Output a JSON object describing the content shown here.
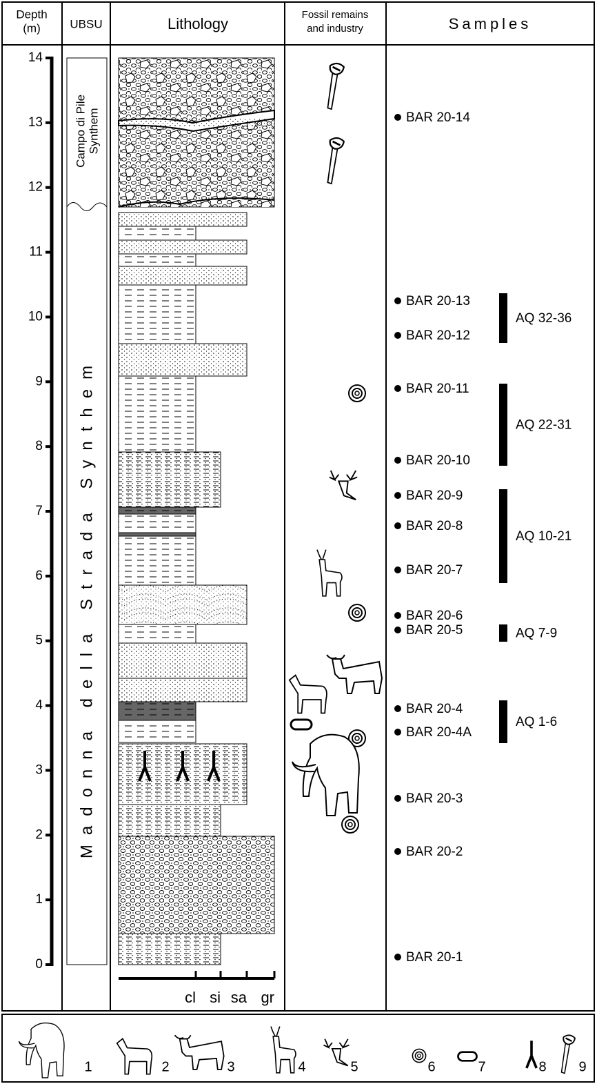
{
  "columns": {
    "depth": [
      "Depth",
      "(m)"
    ],
    "ubsu": "UBSU",
    "lithology": "Lithology",
    "fossils": [
      "Fossil remains",
      "and industry"
    ],
    "samples": "Samples"
  },
  "depth_ticks": [
    0,
    1,
    2,
    3,
    4,
    5,
    6,
    7,
    8,
    9,
    10,
    11,
    12,
    13,
    14
  ],
  "ubsu_units": [
    {
      "name": [
        "Campo di Pile",
        "Synthem"
      ]
    },
    {
      "name": "Madonna della Strada Synthem"
    }
  ],
  "grain_sizes": [
    "cl",
    "si",
    "sa",
    "gr"
  ],
  "samples": [
    "BAR 20-14",
    "BAR 20-13",
    "BAR 20-12",
    "BAR 20-11",
    "BAR 20-10",
    "BAR 20-9",
    "BAR 20-8",
    "BAR 20-7",
    "BAR 20-6",
    "BAR 20-5",
    "BAR 20-4",
    "BAR 20-4A",
    "BAR 20-3",
    "BAR 20-2",
    "BAR 20-1"
  ],
  "intervals": [
    "AQ 32-36",
    "AQ 22-31",
    "AQ 10-21",
    "AQ 7-9",
    "AQ 1-6"
  ],
  "legend": [
    1,
    2,
    3,
    4,
    5,
    6,
    7,
    8,
    9
  ]
}
